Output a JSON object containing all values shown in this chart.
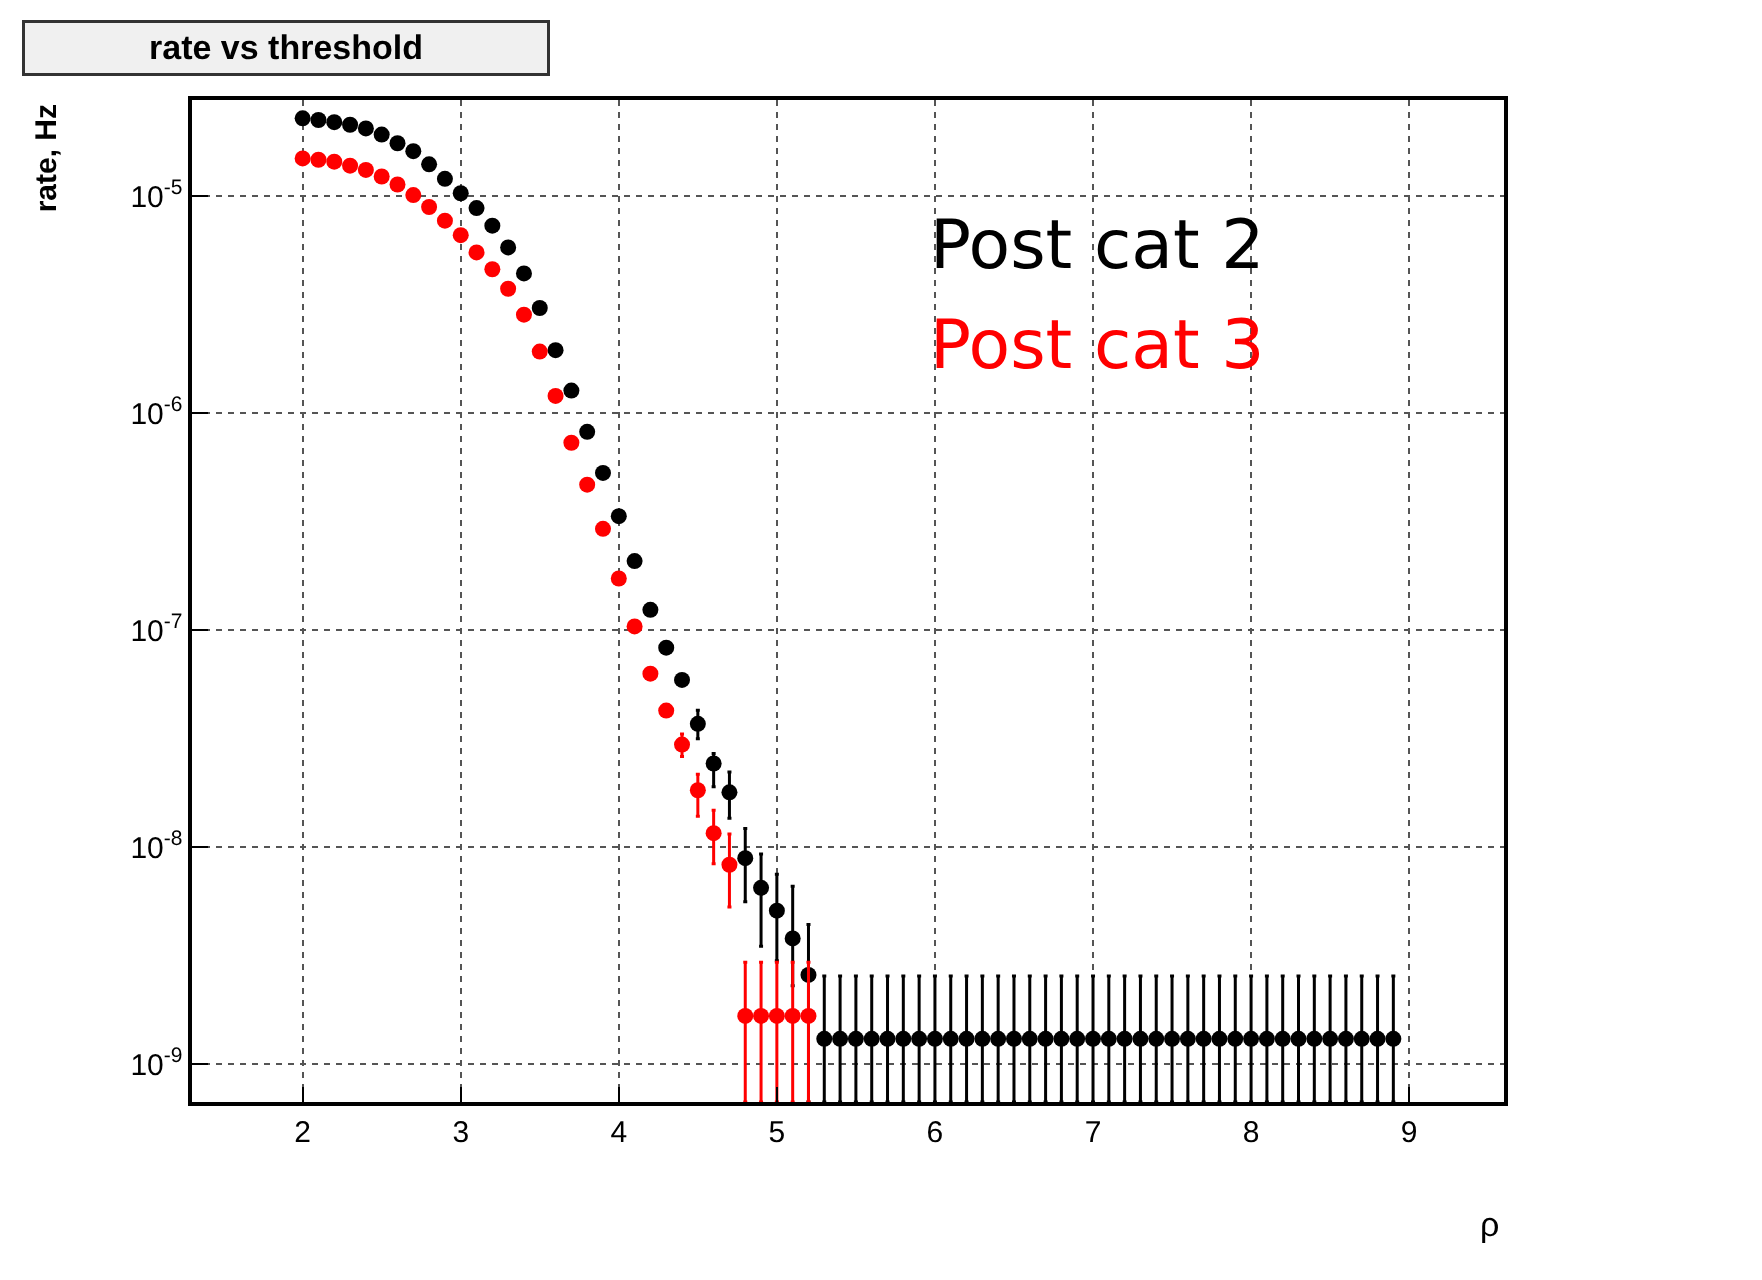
{
  "chart_data": {
    "type": "scatter",
    "title": "rate vs threshold",
    "xlabel": "ρ",
    "ylabel": "rate, Hz",
    "log": "y",
    "grid": true,
    "legend": false,
    "marker": "circle",
    "xlim": [
      1.3,
      9.6
    ],
    "xticks": [
      2,
      3,
      4,
      5,
      6,
      7,
      8,
      9
    ],
    "ylim": [
      6.7e-10,
      2.77e-05
    ],
    "yticks": [
      {
        "value": 1e-09,
        "label": "10$^{-9}$"
      },
      {
        "value": 1e-08,
        "label": "10$^{-8}$"
      },
      {
        "value": 1e-07,
        "label": "10$^{-7}$"
      },
      {
        "value": 1e-06,
        "label": "10$^{-6}$"
      },
      {
        "value": 1e-05,
        "label": "10$^{-5}$"
      }
    ],
    "series": [
      {
        "name": "Post cat 2",
        "color": "#000000",
        "x": [
          2.0,
          2.1,
          2.2,
          2.3,
          2.4,
          2.5,
          2.6,
          2.7,
          2.8,
          2.9,
          3.0,
          3.1,
          3.2,
          3.3,
          3.4,
          3.5,
          3.6,
          3.7,
          3.8,
          3.9,
          4.0,
          4.1,
          4.2,
          4.3,
          4.4,
          4.5,
          4.6,
          4.7,
          4.8,
          4.9,
          5.0,
          5.1,
          5.2,
          5.3,
          5.4,
          5.5,
          5.6,
          5.7,
          5.8,
          5.9,
          6.0,
          6.1,
          6.2,
          6.3,
          6.4,
          6.5,
          6.6,
          6.7,
          6.8,
          6.9,
          7.0,
          7.1,
          7.2,
          7.3,
          7.4,
          7.5,
          7.6,
          7.7,
          7.8,
          7.9,
          8.0,
          8.1,
          8.2,
          8.3,
          8.4,
          8.5,
          8.6,
          8.7,
          8.8,
          8.9
        ],
        "values": [
          2.28e-05,
          2.24e-05,
          2.19e-05,
          2.13e-05,
          2.05e-05,
          1.92e-05,
          1.75e-05,
          1.61e-05,
          1.4e-05,
          1.2e-05,
          1.03e-05,
          8.8e-06,
          7.3e-06,
          5.8e-06,
          4.4e-06,
          3.05e-06,
          1.95e-06,
          1.27e-06,
          8.2e-07,
          5.3e-07,
          3.35e-07,
          2.08e-07,
          1.24e-07,
          8.3e-08,
          5.9e-08,
          3.7e-08,
          2.43e-08,
          1.79e-08,
          8.9e-09,
          6.5e-09,
          5.1e-09,
          3.8e-09,
          2.58e-09,
          1.31e-09,
          1.31e-09,
          1.31e-09,
          1.31e-09,
          1.31e-09,
          1.31e-09,
          1.31e-09,
          1.31e-09,
          1.31e-09,
          1.31e-09,
          1.31e-09,
          1.31e-09,
          1.31e-09,
          1.31e-09,
          1.31e-09,
          1.31e-09,
          1.31e-09,
          1.31e-09,
          1.31e-09,
          1.31e-09,
          1.31e-09,
          1.31e-09,
          1.31e-09,
          1.31e-09,
          1.31e-09,
          1.31e-09,
          1.31e-09,
          1.31e-09,
          1.31e-09,
          1.31e-09,
          1.31e-09,
          1.31e-09,
          1.31e-09,
          1.31e-09,
          1.31e-09,
          1.31e-09,
          1.31e-09
        ],
        "errors": [
          null,
          null,
          null,
          null,
          null,
          null,
          null,
          null,
          null,
          null,
          null,
          null,
          null,
          null,
          null,
          null,
          null,
          null,
          null,
          null,
          null,
          null,
          null,
          null,
          null,
          [
            3.16e-08,
            4.28e-08
          ],
          [
            1.9e-08,
            2.7e-08
          ],
          [
            1.36e-08,
            2.22e-08
          ],
          [
            5.6e-09,
            1.22e-08
          ],
          [
            3.5e-09,
            9.3e-09
          ],
          [
            3e-09,
            7.5e-09
          ],
          [
            2.3e-09,
            6.6e-09
          ],
          [
            6.7e-10,
            4.4e-09
          ],
          [
            6.7e-10,
            2.55e-09
          ],
          [
            6.7e-10,
            2.55e-09
          ],
          [
            6.7e-10,
            2.55e-09
          ],
          [
            6.7e-10,
            2.55e-09
          ],
          [
            6.7e-10,
            2.55e-09
          ],
          [
            6.7e-10,
            2.55e-09
          ],
          [
            6.7e-10,
            2.55e-09
          ],
          [
            6.7e-10,
            2.55e-09
          ],
          [
            6.7e-10,
            2.55e-09
          ],
          [
            6.7e-10,
            2.55e-09
          ],
          [
            6.7e-10,
            2.55e-09
          ],
          [
            6.7e-10,
            2.55e-09
          ],
          [
            6.7e-10,
            2.55e-09
          ],
          [
            6.7e-10,
            2.55e-09
          ],
          [
            6.7e-10,
            2.55e-09
          ],
          [
            6.7e-10,
            2.55e-09
          ],
          [
            6.7e-10,
            2.55e-09
          ],
          [
            6.7e-10,
            2.55e-09
          ],
          [
            6.7e-10,
            2.55e-09
          ],
          [
            6.7e-10,
            2.55e-09
          ],
          [
            6.7e-10,
            2.55e-09
          ],
          [
            6.7e-10,
            2.55e-09
          ],
          [
            6.7e-10,
            2.55e-09
          ],
          [
            6.7e-10,
            2.55e-09
          ],
          [
            6.7e-10,
            2.55e-09
          ],
          [
            6.7e-10,
            2.55e-09
          ],
          [
            6.7e-10,
            2.55e-09
          ],
          [
            6.7e-10,
            2.55e-09
          ],
          [
            6.7e-10,
            2.55e-09
          ],
          [
            6.7e-10,
            2.55e-09
          ],
          [
            6.7e-10,
            2.55e-09
          ],
          [
            6.7e-10,
            2.55e-09
          ],
          [
            6.7e-10,
            2.55e-09
          ],
          [
            6.7e-10,
            2.55e-09
          ],
          [
            6.7e-10,
            2.55e-09
          ],
          [
            6.7e-10,
            2.55e-09
          ],
          [
            6.7e-10,
            2.55e-09
          ]
        ]
      },
      {
        "name": "Post cat 3",
        "color": "#ff0000",
        "x": [
          2.0,
          2.1,
          2.2,
          2.3,
          2.4,
          2.5,
          2.6,
          2.7,
          2.8,
          2.9,
          3.0,
          3.1,
          3.2,
          3.3,
          3.4,
          3.5,
          3.6,
          3.7,
          3.8,
          3.9,
          4.0,
          4.1,
          4.2,
          4.3,
          4.4,
          4.5,
          4.6,
          4.7,
          4.8,
          4.9,
          5.0,
          5.1,
          5.2
        ],
        "values": [
          1.49e-05,
          1.47e-05,
          1.44e-05,
          1.38e-05,
          1.32e-05,
          1.23e-05,
          1.13e-05,
          1.01e-05,
          8.9e-06,
          7.7e-06,
          6.6e-06,
          5.5e-06,
          4.6e-06,
          3.74e-06,
          2.84e-06,
          1.92e-06,
          1.2e-06,
          7.3e-07,
          4.68e-07,
          2.93e-07,
          1.73e-07,
          1.04e-07,
          6.3e-08,
          4.26e-08,
          2.97e-08,
          1.83e-08,
          1.16e-08,
          8.3e-09,
          1.67e-09,
          1.67e-09,
          1.67e-09,
          1.67e-09,
          1.67e-09
        ],
        "errors": [
          null,
          null,
          null,
          null,
          null,
          null,
          null,
          null,
          null,
          null,
          null,
          null,
          null,
          null,
          null,
          null,
          null,
          null,
          null,
          null,
          null,
          null,
          null,
          null,
          [
            2.62e-08,
            3.32e-08
          ],
          [
            1.39e-08,
            2.17e-08
          ],
          [
            8.4e-09,
            1.48e-08
          ],
          [
            5.3e-09,
            1.15e-08
          ],
          [
            6.7e-10,
            2.95e-09
          ],
          [
            6.7e-10,
            2.95e-09
          ],
          [
            6.7e-10,
            2.95e-09
          ],
          [
            6.7e-10,
            2.95e-09
          ],
          [
            6.7e-10,
            2.95e-09
          ]
        ]
      }
    ]
  }
}
